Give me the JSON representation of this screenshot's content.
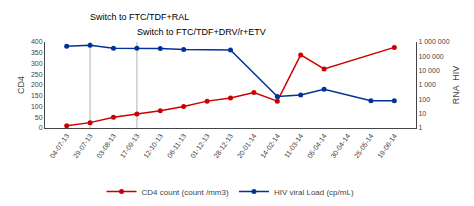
{
  "chart_data": {
    "type": "line",
    "categories": [
      "04-07-13",
      "29-07-13",
      "03-08-13",
      "17-09-13",
      "12-10-13",
      "06-11-13",
      "01-12-13",
      "28-12-13",
      "20-01-14",
      "14-02-14",
      "11-03-14",
      "05-04-14",
      "30-04-14",
      "25-05-14",
      "19-06-14"
    ],
    "series": [
      {
        "name": "CD4 count (count /mm3)",
        "color": "#cc0000",
        "marker": "circle",
        "values": [
          10,
          25,
          50,
          65,
          80,
          100,
          125,
          140,
          165,
          125,
          340,
          275,
          null,
          null,
          375
        ]
      },
      {
        "name": "HIV viral Load (cp/mL)",
        "color": "#003399",
        "marker": "circle",
        "axis": "y2",
        "values": [
          500000,
          600000,
          370000,
          360000,
          355000,
          305000,
          null,
          280000,
          null,
          160,
          200,
          500,
          null,
          80,
          80
        ]
      }
    ],
    "ylabel": "CD4",
    "y2label": "RNA  HIV",
    "ylim": [
      0,
      400
    ],
    "yticks": [
      0,
      50,
      100,
      150,
      200,
      250,
      300,
      350,
      400
    ],
    "y2lim": [
      1,
      1000000
    ],
    "y2ticks": [
      1,
      10,
      100,
      {
        "value": 1000,
        "label": "1 000"
      },
      {
        "value": 10000,
        "label": "10 000"
      },
      {
        "value": 100000,
        "label": "100 000"
      },
      {
        "value": 1000000,
        "label": "1 000 000"
      }
    ],
    "log": "y2",
    "annotations": [
      {
        "text": "Switch to FTC/TDF+RAL",
        "x": "29-07-13"
      },
      {
        "text": "Switch to FTC/TDF+DRV/r+ETV",
        "x": "17-09-13"
      }
    ],
    "grid": false,
    "legend": "bottom"
  }
}
